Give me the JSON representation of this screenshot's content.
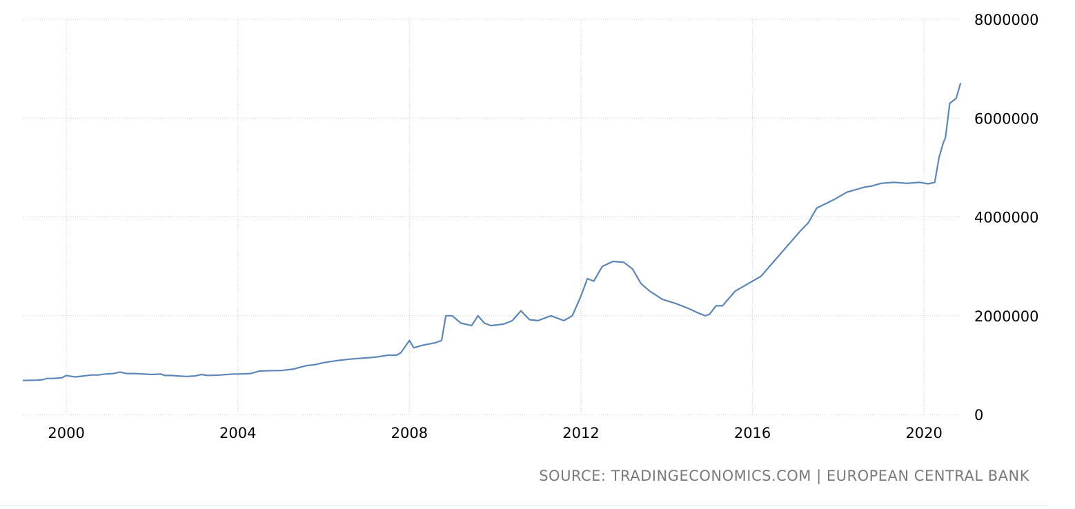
{
  "source_text": "SOURCE: TRADINGECONOMICS.COM | EUROPEAN CENTRAL BANK",
  "chart_data": {
    "type": "line",
    "title": "",
    "xlabel": "",
    "ylabel": "",
    "xlim": [
      1999.0,
      2020.85
    ],
    "ylim": [
      0,
      8000000
    ],
    "x_ticks": [
      2000,
      2004,
      2008,
      2012,
      2016,
      2020
    ],
    "x_tick_labels": [
      "2000",
      "2004",
      "2008",
      "2012",
      "2016",
      "2020"
    ],
    "y_ticks": [
      0,
      2000000,
      4000000,
      6000000,
      8000000
    ],
    "y_tick_labels": [
      "0",
      "2000000",
      "4000000",
      "6000000",
      "8000000"
    ],
    "grid": true,
    "legend": "none",
    "line_color": "#5b86b8",
    "series": [
      {
        "x": [
          1999.0,
          1999.3,
          1999.45,
          1999.55,
          1999.7,
          1999.9,
          2000.0,
          2000.2,
          2000.4,
          2000.6,
          2000.75,
          2000.9,
          2001.1,
          2001.25,
          2001.4,
          2001.6,
          2001.8,
          2002.0,
          2002.2,
          2002.3,
          2002.45,
          2002.6,
          2002.8,
          2003.0,
          2003.15,
          2003.3,
          2003.6,
          2003.9,
          2004.0,
          2004.3,
          2004.5,
          2004.8,
          2005.0,
          2005.3,
          2005.6,
          2005.8,
          2006.0,
          2006.3,
          2006.6,
          2006.9,
          2007.2,
          2007.5,
          2007.7,
          2007.8,
          2008.0,
          2008.1,
          2008.3,
          2008.6,
          2008.75,
          2008.85,
          2009.0,
          2009.2,
          2009.45,
          2009.6,
          2009.75,
          2009.9,
          2010.2,
          2010.4,
          2010.6,
          2010.8,
          2011.0,
          2011.3,
          2011.6,
          2011.8,
          2011.95,
          2012.0,
          2012.15,
          2012.3,
          2012.5,
          2012.75,
          2013.0,
          2013.2,
          2013.4,
          2013.6,
          2013.9,
          2014.2,
          2014.5,
          2014.75,
          2014.9,
          2015.0,
          2015.15,
          2015.3,
          2015.6,
          2015.9,
          2016.2,
          2016.5,
          2016.8,
          2017.1,
          2017.3,
          2017.5,
          2017.9,
          2018.2,
          2018.6,
          2018.8,
          2019.0,
          2019.3,
          2019.6,
          2019.9,
          2020.1,
          2020.25,
          2020.35,
          2020.45,
          2020.5,
          2020.6,
          2020.75,
          2020.85
        ],
        "values": [
          690000,
          695000,
          705000,
          730000,
          730000,
          745000,
          790000,
          760000,
          780000,
          800000,
          800000,
          820000,
          830000,
          860000,
          830000,
          830000,
          820000,
          810000,
          820000,
          790000,
          790000,
          780000,
          770000,
          780000,
          810000,
          790000,
          800000,
          820000,
          820000,
          830000,
          880000,
          890000,
          890000,
          920000,
          990000,
          1010000,
          1050000,
          1090000,
          1120000,
          1140000,
          1160000,
          1200000,
          1200000,
          1250000,
          1500000,
          1350000,
          1400000,
          1450000,
          1500000,
          2000000,
          2000000,
          1850000,
          1800000,
          2000000,
          1850000,
          1800000,
          1830000,
          1900000,
          2100000,
          1920000,
          1900000,
          2000000,
          1900000,
          2000000,
          2300000,
          2400000,
          2750000,
          2700000,
          3000000,
          3100000,
          3080000,
          2950000,
          2650000,
          2500000,
          2330000,
          2250000,
          2150000,
          2050000,
          2000000,
          2030000,
          2200000,
          2200000,
          2500000,
          2650000,
          2800000,
          3100000,
          3400000,
          3700000,
          3880000,
          4180000,
          4350000,
          4500000,
          4600000,
          4630000,
          4680000,
          4700000,
          4680000,
          4700000,
          4670000,
          4700000,
          5200000,
          5500000,
          5600000,
          6300000,
          6400000,
          6700000
        ]
      }
    ]
  }
}
